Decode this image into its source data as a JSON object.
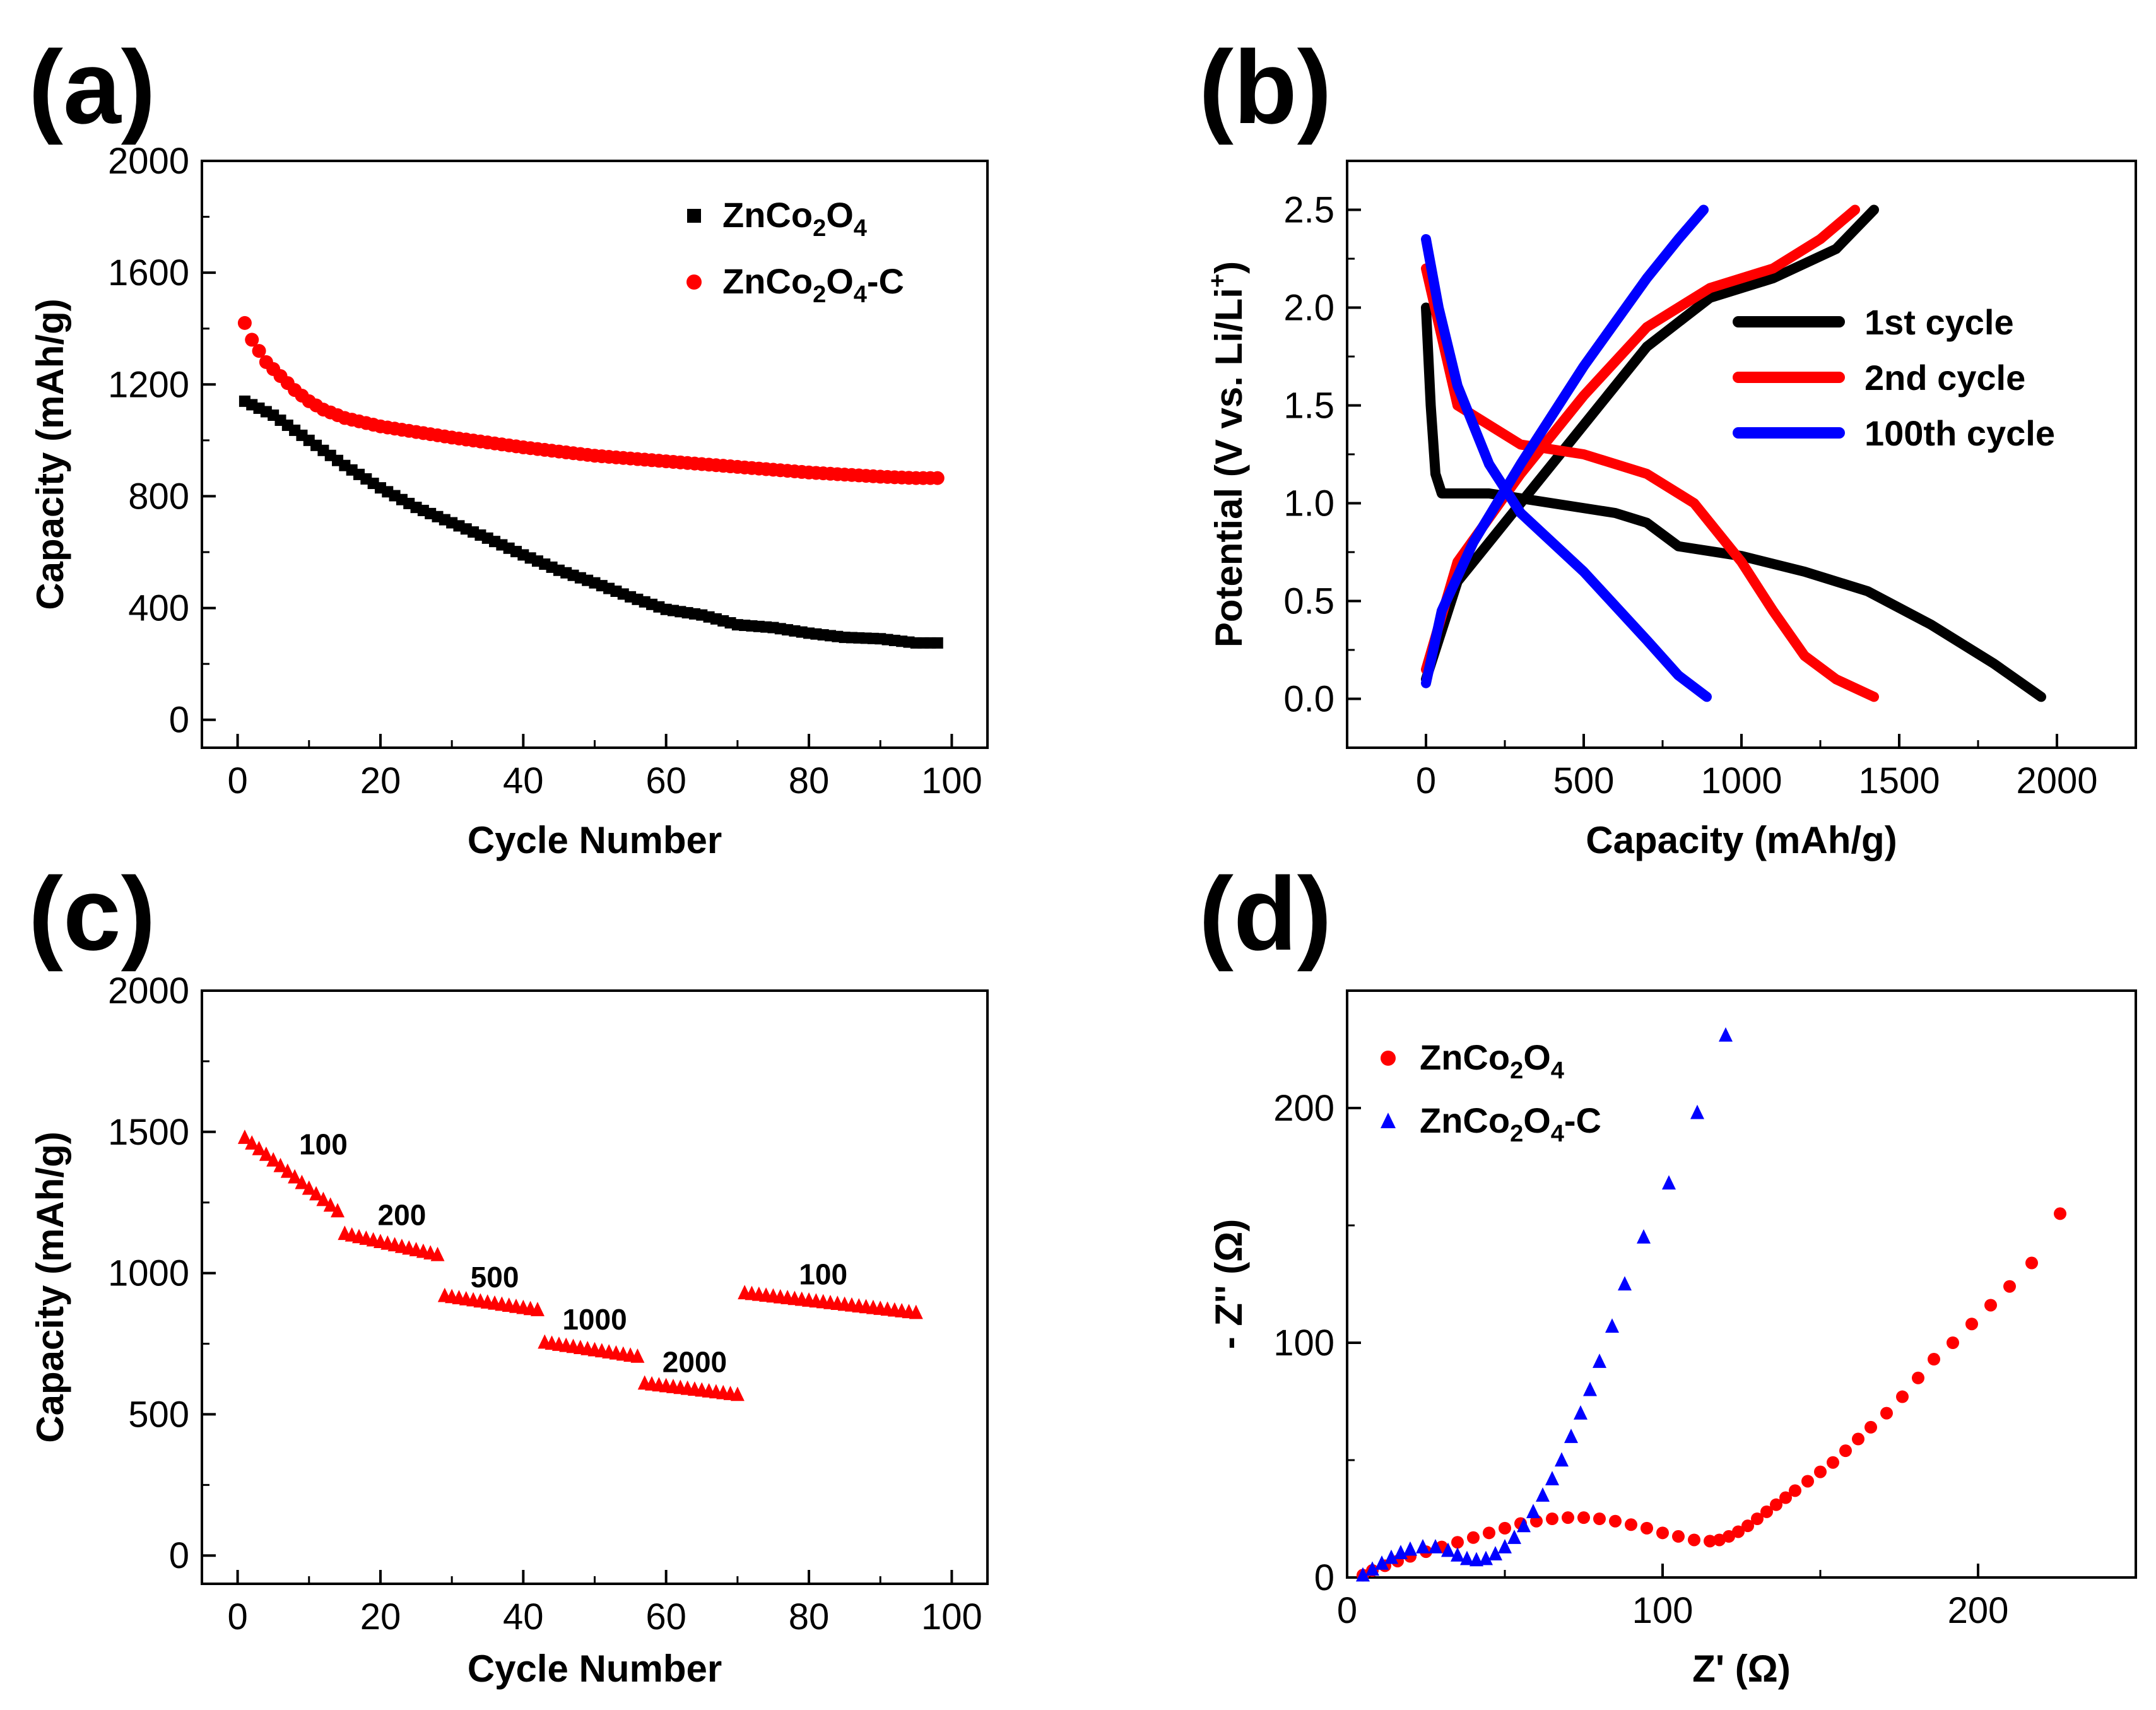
{
  "panels": {
    "a": {
      "label": "(a)"
    },
    "b": {
      "label": "(b)"
    },
    "c": {
      "label": "(c)"
    },
    "d": {
      "label": "(d)"
    }
  },
  "chart_data": [
    {
      "id": "a",
      "type": "scatter",
      "xlabel": "Cycle Number",
      "ylabel": "Capacity (mAh/g)",
      "xlim": [
        -5,
        105
      ],
      "ylim": [
        -100,
        2000
      ],
      "xticks": [
        0,
        20,
        40,
        60,
        80,
        100
      ],
      "yticks": [
        0,
        400,
        800,
        1200,
        1600,
        2000
      ],
      "legend": "top-right",
      "series": [
        {
          "name": "ZnCo2O4",
          "label_base": "ZnCo",
          "label_sub1": "2",
          "label_mid": "O",
          "label_sub2": "4",
          "label_suffix": "",
          "color": "#000000",
          "marker": "square",
          "key_x": [
            1,
            5,
            10,
            15,
            20,
            25,
            30,
            35,
            40,
            45,
            50,
            55,
            60,
            65,
            70,
            75,
            80,
            85,
            90,
            95,
            98
          ],
          "key_y": [
            1140,
            1090,
            1000,
            910,
            830,
            760,
            705,
            650,
            590,
            535,
            490,
            440,
            395,
            375,
            340,
            330,
            310,
            295,
            290,
            275,
            275
          ]
        },
        {
          "name": "ZnCo2O4-C",
          "label_base": "ZnCo",
          "label_sub1": "2",
          "label_mid": "O",
          "label_sub2": "4",
          "label_suffix": "-C",
          "color": "#ff0000",
          "marker": "circle",
          "key_x": [
            1,
            2,
            4,
            6,
            8,
            10,
            12,
            15,
            20,
            25,
            30,
            40,
            50,
            60,
            70,
            80,
            90,
            95,
            98
          ],
          "key_y": [
            1420,
            1360,
            1280,
            1230,
            1180,
            1140,
            1110,
            1080,
            1050,
            1030,
            1010,
            975,
            945,
            925,
            905,
            885,
            870,
            865,
            865
          ]
        }
      ]
    },
    {
      "id": "b",
      "type": "line",
      "xlabel": "Capacity (mAh/g)",
      "ylabel_main": "Potential (V vs. Li/Li",
      "ylabel_sup": "+",
      "ylabel_end": ")",
      "xlim": [
        -250,
        2250
      ],
      "ylim": [
        -0.25,
        2.75
      ],
      "xticks": [
        0,
        500,
        1000,
        1500,
        2000
      ],
      "yticks": [
        0.0,
        0.5,
        1.0,
        1.5,
        2.0,
        2.5
      ],
      "ytick_labels": [
        "0.0",
        "0.5",
        "1.0",
        "1.5",
        "2.0",
        "2.5"
      ],
      "legend": "right",
      "series": [
        {
          "name": "1st cycle",
          "color": "#000000",
          "discharge": [
            [
              0,
              2.0
            ],
            [
              15,
              1.5
            ],
            [
              30,
              1.15
            ],
            [
              50,
              1.05
            ],
            [
              200,
              1.05
            ],
            [
              400,
              1.0
            ],
            [
              600,
              0.95
            ],
            [
              700,
              0.9
            ],
            [
              800,
              0.78
            ],
            [
              1000,
              0.73
            ],
            [
              1200,
              0.65
            ],
            [
              1400,
              0.55
            ],
            [
              1600,
              0.38
            ],
            [
              1800,
              0.18
            ],
            [
              1950,
              0.01
            ]
          ],
          "charge": [
            [
              0,
              0.1
            ],
            [
              100,
              0.6
            ],
            [
              300,
              1.0
            ],
            [
              500,
              1.4
            ],
            [
              700,
              1.8
            ],
            [
              900,
              2.05
            ],
            [
              1100,
              2.15
            ],
            [
              1300,
              2.3
            ],
            [
              1420,
              2.5
            ]
          ]
        },
        {
          "name": "2nd cycle",
          "color": "#ff0000",
          "discharge": [
            [
              0,
              2.2
            ],
            [
              100,
              1.5
            ],
            [
              300,
              1.3
            ],
            [
              500,
              1.25
            ],
            [
              700,
              1.15
            ],
            [
              850,
              1.0
            ],
            [
              1000,
              0.7
            ],
            [
              1100,
              0.45
            ],
            [
              1200,
              0.22
            ],
            [
              1300,
              0.1
            ],
            [
              1420,
              0.01
            ]
          ],
          "charge": [
            [
              0,
              0.15
            ],
            [
              100,
              0.7
            ],
            [
              300,
              1.15
            ],
            [
              500,
              1.55
            ],
            [
              700,
              1.9
            ],
            [
              900,
              2.1
            ],
            [
              1100,
              2.2
            ],
            [
              1250,
              2.35
            ],
            [
              1360,
              2.5
            ]
          ]
        },
        {
          "name": "100th cycle",
          "color": "#0000ff",
          "discharge": [
            [
              0,
              2.35
            ],
            [
              40,
              2.0
            ],
            [
              100,
              1.6
            ],
            [
              200,
              1.2
            ],
            [
              300,
              0.95
            ],
            [
              500,
              0.65
            ],
            [
              700,
              0.3
            ],
            [
              800,
              0.12
            ],
            [
              890,
              0.01
            ]
          ],
          "charge": [
            [
              0,
              0.08
            ],
            [
              50,
              0.45
            ],
            [
              150,
              0.8
            ],
            [
              300,
              1.2
            ],
            [
              500,
              1.7
            ],
            [
              700,
              2.15
            ],
            [
              800,
              2.35
            ],
            [
              880,
              2.5
            ]
          ]
        }
      ]
    },
    {
      "id": "c",
      "type": "scatter",
      "xlabel": "Cycle Number",
      "ylabel": "Capacity (mAh/g)",
      "xlim": [
        -5,
        105
      ],
      "ylim": [
        -100,
        2000
      ],
      "xticks": [
        0,
        20,
        40,
        60,
        80,
        100
      ],
      "yticks": [
        0,
        500,
        1000,
        1500,
        2000
      ],
      "series": [
        {
          "name": "rate",
          "color": "#ff0000",
          "marker": "triangle",
          "segments": [
            {
              "x": [
                1,
                14
              ],
              "y": [
                1480,
                1220
              ],
              "annotation": "100",
              "ax": 12,
              "ay": 1420
            },
            {
              "x": [
                15,
                28
              ],
              "y": [
                1140,
                1065
              ],
              "annotation": "200",
              "ax": 23,
              "ay": 1170
            },
            {
              "x": [
                29,
                42
              ],
              "y": [
                920,
                870
              ],
              "annotation": "500",
              "ax": 36,
              "ay": 950
            },
            {
              "x": [
                43,
                56
              ],
              "y": [
                755,
                705
              ],
              "annotation": "1000",
              "ax": 50,
              "ay": 800
            },
            {
              "x": [
                57,
                70
              ],
              "y": [
                610,
                570
              ],
              "annotation": "2000",
              "ax": 64,
              "ay": 650
            },
            {
              "x": [
                71,
                95
              ],
              "y": [
                930,
                860
              ],
              "annotation": "100",
              "ax": 82,
              "ay": 960
            }
          ]
        }
      ]
    },
    {
      "id": "d",
      "type": "scatter",
      "xlabel": "Z' (Ω)",
      "ylabel": "- Z'' (Ω)",
      "xlim": [
        0,
        250
      ],
      "ylim": [
        0,
        250
      ],
      "xticks": [
        0,
        100,
        200
      ],
      "yticks": [
        0,
        100,
        200
      ],
      "legend": "top-left",
      "series": [
        {
          "name": "ZnCo2O4",
          "label_base": "ZnCo",
          "label_sub1": "2",
          "label_mid": "O",
          "label_sub2": "4",
          "label_suffix": "",
          "color": "#ff0000",
          "marker": "circle",
          "points": [
            [
              5,
              1
            ],
            [
              8,
              3
            ],
            [
              12,
              5
            ],
            [
              16,
              7
            ],
            [
              20,
              9
            ],
            [
              25,
              11
            ],
            [
              30,
              13
            ],
            [
              35,
              15
            ],
            [
              40,
              17
            ],
            [
              45,
              19
            ],
            [
              50,
              21
            ],
            [
              55,
              23
            ],
            [
              60,
              24
            ],
            [
              65,
              25
            ],
            [
              70,
              25.5
            ],
            [
              75,
              25.5
            ],
            [
              80,
              25
            ],
            [
              85,
              24
            ],
            [
              90,
              22.5
            ],
            [
              95,
              21
            ],
            [
              100,
              19
            ],
            [
              105,
              17.5
            ],
            [
              110,
              16
            ],
            [
              115,
              15.5
            ],
            [
              118,
              16
            ],
            [
              121,
              17.5
            ],
            [
              124,
              19.5
            ],
            [
              127,
              22
            ],
            [
              130,
              25
            ],
            [
              133,
              28
            ],
            [
              136,
              31
            ],
            [
              139,
              34
            ],
            [
              142,
              37
            ],
            [
              146,
              41
            ],
            [
              150,
              45
            ],
            [
              154,
              49
            ],
            [
              158,
              54
            ],
            [
              162,
              59
            ],
            [
              166,
              64
            ],
            [
              171,
              70
            ],
            [
              176,
              77
            ],
            [
              181,
              85
            ],
            [
              186,
              93
            ],
            [
              192,
              100
            ],
            [
              198,
              108
            ],
            [
              204,
              116
            ],
            [
              210,
              124
            ],
            [
              217,
              134
            ],
            [
              226,
              155
            ]
          ]
        },
        {
          "name": "ZnCo2O4-C",
          "label_base": "ZnCo",
          "label_sub1": "2",
          "label_mid": "O",
          "label_sub2": "4",
          "label_suffix": "-C",
          "color": "#0000ff",
          "marker": "triangle",
          "points": [
            [
              5,
              1
            ],
            [
              8,
              3.5
            ],
            [
              11,
              6
            ],
            [
              14,
              8.5
            ],
            [
              17,
              10.5
            ],
            [
              20,
              12
            ],
            [
              24,
              13
            ],
            [
              28,
              13
            ],
            [
              32,
              11.5
            ],
            [
              35,
              9.5
            ],
            [
              38,
              8
            ],
            [
              41,
              7.5
            ],
            [
              44,
              8
            ],
            [
              47,
              10
            ],
            [
              50,
              13
            ],
            [
              53,
              17
            ],
            [
              56,
              22
            ],
            [
              59,
              28
            ],
            [
              62,
              35
            ],
            [
              65,
              42
            ],
            [
              68,
              50
            ],
            [
              71,
              60
            ],
            [
              74,
              70
            ],
            [
              77,
              80
            ],
            [
              80,
              92
            ],
            [
              84,
              107
            ],
            [
              88,
              125
            ],
            [
              94,
              145
            ],
            [
              102,
              168
            ],
            [
              111,
              198
            ],
            [
              120,
              231
            ]
          ]
        }
      ]
    }
  ]
}
